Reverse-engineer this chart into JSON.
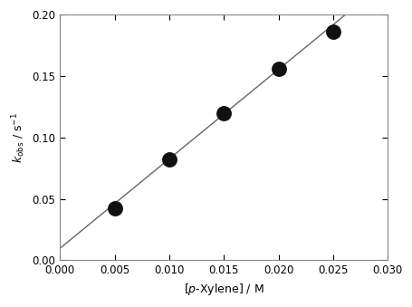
{
  "x_data": [
    0.005,
    0.01,
    0.015,
    0.02,
    0.025
  ],
  "y_data": [
    0.042,
    0.082,
    0.12,
    0.156,
    0.186
  ],
  "fit_x": [
    0.0,
    0.03
  ],
  "fit_slope": 7.28,
  "fit_intercept": 0.0098,
  "xlim": [
    0.0,
    0.03
  ],
  "ylim": [
    0.0,
    0.2
  ],
  "xticks": [
    0.0,
    0.005,
    0.01,
    0.015,
    0.02,
    0.025,
    0.03
  ],
  "yticks": [
    0.0,
    0.05,
    0.1,
    0.15,
    0.2
  ],
  "xlabel": "[p-Xylene] / M",
  "marker_color": "#111111",
  "line_color": "#666666",
  "marker_size": 6.5,
  "line_width": 1.0,
  "figure_width": 4.56,
  "figure_height": 3.39,
  "dpi": 100,
  "spine_color": "#888888"
}
